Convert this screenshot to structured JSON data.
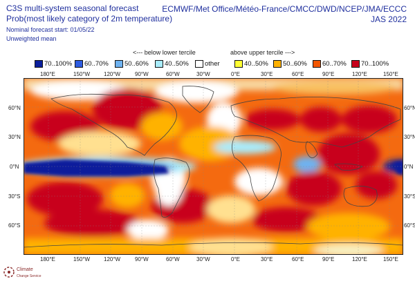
{
  "header": {
    "title_line1": "C3S multi-system seasonal forecast",
    "title_line2": "Prob(most likely category of 2m temperature)",
    "start_line": "Nominal forecast start: 01/05/22",
    "mean_line": "Unweighted mean",
    "centres": "ECMWF/Met Office/Météo-France/CMCC/DWD/NCEP/JMA/ECCC",
    "season": "JAS 2022"
  },
  "legend": {
    "below_label": "<--- below lower tercile",
    "above_label": "above upper tercile --->",
    "items": [
      {
        "label": "70..100%",
        "color": "#0a1e9c"
      },
      {
        "label": "60..70%",
        "color": "#2d5be0"
      },
      {
        "label": "50..60%",
        "color": "#6eb2f0"
      },
      {
        "label": "40..50%",
        "color": "#a9ecfb"
      },
      {
        "label": "other",
        "color": "#ffffff"
      },
      {
        "label": "40..50%",
        "color": "#ffff33"
      },
      {
        "label": "50..60%",
        "color": "#ffb200"
      },
      {
        "label": "60..70%",
        "color": "#f25600"
      },
      {
        "label": "70..100%",
        "color": "#c8001c"
      }
    ]
  },
  "axes": {
    "lon_labels": [
      "180°E",
      "150°W",
      "120°W",
      "90°W",
      "60°W",
      "30°W",
      "0°E",
      "30°E",
      "60°E",
      "90°E",
      "120°E",
      "150°E"
    ],
    "lat_labels": [
      "60°N",
      "30°N",
      "0°N",
      "30°S",
      "60°S"
    ]
  },
  "logo": {
    "name": "Climate",
    "sub": "Change Service"
  }
}
